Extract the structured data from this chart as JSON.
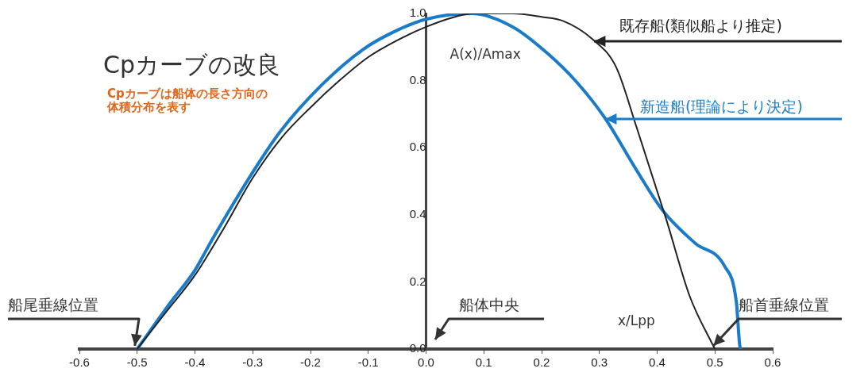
{
  "chart_data": {
    "type": "line",
    "title": "Cpカーブの改良",
    "subtitle": "Cpカーブは船体の長さ方向の体積分布を表す",
    "xlabel": "x/Lpp",
    "ylabel": "A(x)/Amax",
    "series": [
      {
        "name": "既存船(類似船より推定)",
        "color": "#222222",
        "x": [
          -0.5,
          -0.45,
          -0.4,
          -0.35,
          -0.3,
          -0.25,
          -0.2,
          -0.15,
          -0.1,
          -0.05,
          0,
          0.05,
          0.08,
          0.15,
          0.2,
          0.237,
          0.287,
          0.329,
          0.364,
          0.416,
          0.456,
          0.497,
          0.5
        ],
        "values": [
          0,
          0.11,
          0.22,
          0.36,
          0.51,
          0.63,
          0.72,
          0.8,
          0.87,
          0.92,
          0.96,
          0.99,
          1.0,
          1.0,
          0.99,
          0.978,
          0.925,
          0.84,
          0.663,
          0.385,
          0.159,
          0.01,
          0
        ]
      },
      {
        "name": "新造船(理論により決定)",
        "color": "#1a7cc9",
        "x": [
          -0.5,
          -0.443,
          -0.4,
          -0.371,
          -0.3,
          -0.252,
          -0.18,
          -0.109,
          -0.05,
          0,
          0.079,
          0.15,
          0.211,
          0.261,
          0.309,
          0.364,
          0.41,
          0.466,
          0.517,
          0.537,
          0.543,
          0.545
        ],
        "values": [
          0,
          0.137,
          0.235,
          0.324,
          0.527,
          0.649,
          0.788,
          0.893,
          0.95,
          0.983,
          1.0,
          0.96,
          0.88,
          0.795,
          0.69,
          0.534,
          0.412,
          0.315,
          0.246,
          0.141,
          0.01,
          0
        ]
      }
    ],
    "xlim": [
      -0.6,
      0.6
    ],
    "xticks": [
      -0.6,
      -0.5,
      -0.4,
      -0.3,
      -0.2,
      -0.1,
      {
        "value": 0,
        "label": "0.0"
      },
      0.1,
      0.2,
      0.3,
      0.4,
      0.5,
      0.6
    ],
    "ylim": [
      0,
      1
    ],
    "yticks": [
      {
        "value": 0,
        "label": "0.0"
      },
      0.2,
      0.4,
      0.6,
      0.8,
      {
        "value": 1,
        "label": "1.0"
      }
    ],
    "grid": false,
    "legend": false,
    "marker": "none",
    "line_style": "solid",
    "annotations": [
      {
        "text": "船尾垂線位置",
        "x": -0.5,
        "y": 0
      },
      "船体中央",
      {
        "text": "船首垂線位置",
        "x": 0.5,
        "y": 0
      }
    ]
  }
}
